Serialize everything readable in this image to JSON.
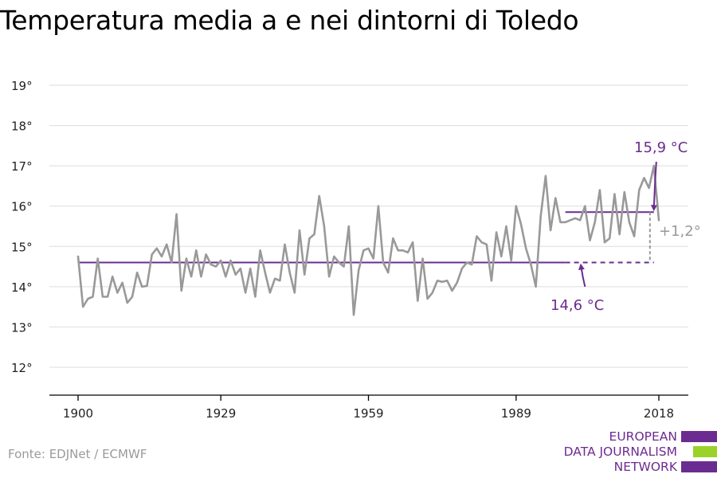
{
  "title": "Temperatura media a e nei dintorni di Toledo",
  "source": "Fonte: EDJNet / ECMWF",
  "logo": {
    "lines": [
      "EUROPEAN",
      "DATA JOURNALISM",
      "NETWORK"
    ],
    "colors": {
      "purple": "#6b2c91",
      "green": "#9bd22a"
    }
  },
  "colors": {
    "line": "#999999",
    "accent": "#6b2c91",
    "axis": "#000000",
    "grid": "#dddddd"
  },
  "chart_data": {
    "type": "line",
    "title": "Temperatura media a e nei dintorni di Toledo",
    "xlabel": "",
    "ylabel": "",
    "xlim": [
      1900,
      2018
    ],
    "ylim": [
      12,
      19
    ],
    "xticks": [
      1900,
      1929,
      1959,
      1989,
      2018
    ],
    "xtick_labels": [
      "1900",
      "1929",
      "1959",
      "1989",
      "2018"
    ],
    "yticks": [
      12,
      13,
      14,
      15,
      16,
      17,
      18,
      19
    ],
    "ytick_labels": [
      "12°",
      "13°",
      "14°",
      "15°",
      "16°",
      "17°",
      "18°",
      "19°"
    ],
    "grid": true,
    "series": [
      {
        "x_start": 1900,
        "values": [
          14.75,
          13.5,
          13.7,
          13.75,
          14.7,
          13.75,
          13.75,
          14.25,
          13.85,
          14.1,
          13.6,
          13.75,
          14.35,
          14.0,
          14.02,
          14.8,
          14.95,
          14.75,
          15.05,
          14.6,
          15.8,
          13.9,
          14.7,
          14.25,
          14.9,
          14.25,
          14.8,
          14.55,
          14.5,
          14.65,
          14.25,
          14.65,
          14.3,
          14.45,
          13.85,
          14.45,
          13.75,
          14.9,
          14.35,
          13.85,
          14.2,
          14.15,
          15.05,
          14.35,
          13.85,
          15.4,
          14.3,
          15.2,
          15.3,
          16.25,
          15.5,
          14.25,
          14.75,
          14.6,
          14.5,
          15.5,
          13.3,
          14.4,
          14.9,
          14.95,
          14.7,
          16.0,
          14.6,
          14.35,
          15.2,
          14.9,
          14.9,
          14.85,
          15.1,
          13.65,
          14.7,
          13.7,
          13.85,
          14.15,
          14.12,
          14.15,
          13.9,
          14.1,
          14.45,
          14.6,
          14.55,
          15.25,
          15.1,
          15.05,
          14.15,
          15.35,
          14.75,
          15.5,
          14.65,
          16.0,
          15.55,
          14.95,
          14.55,
          14.0,
          15.75,
          16.75,
          15.4,
          16.2,
          15.6,
          15.6,
          15.65,
          15.7,
          15.65,
          16.0,
          15.15,
          15.6,
          16.4,
          15.1,
          15.2,
          16.3,
          15.3,
          16.35,
          15.6,
          15.25,
          16.4,
          16.7,
          16.45,
          17.0,
          15.65
        ]
      }
    ],
    "reference_lines": [
      {
        "value": 14.6,
        "from": 1900,
        "to": 1999,
        "style": "solid"
      },
      {
        "value": 14.6,
        "from": 1999,
        "to": 2017,
        "style": "dashed"
      },
      {
        "value": 15.85,
        "from": 1999,
        "to": 2017,
        "style": "solid"
      }
    ],
    "annotations": [
      {
        "text": "15,9 °C"
      },
      {
        "text": "14,6 °C"
      },
      {
        "text": "+1,2°"
      }
    ]
  }
}
